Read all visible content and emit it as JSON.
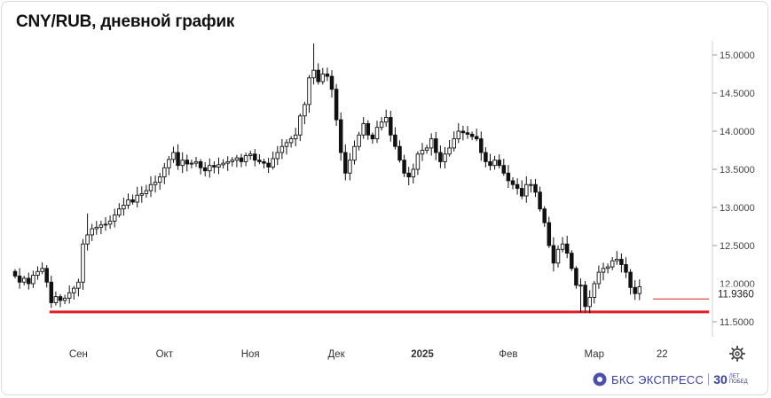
{
  "title": "CNY/RUB, дневной график",
  "brand": {
    "name": "БКС ЭКСПРЕСС",
    "badge_number": "30",
    "badge_text": [
      "ЛЕТ",
      "ПОБЕД"
    ]
  },
  "settings_icon": "gear-icon",
  "colors": {
    "up": "#ffffff",
    "down": "#111111",
    "support": "#e01e26",
    "last_price": "#e01e26",
    "grid": "#e6e6e6",
    "axis": "#444444"
  },
  "chart_data": {
    "type": "candlestick",
    "title": "CNY/RUB, дневной график",
    "ylim": [
      11.5,
      15.1
    ],
    "yticks": [
      "15.0000",
      "14.5000",
      "14.0000",
      "13.5000",
      "13.0000",
      "12.5000",
      "11.5000"
    ],
    "ytick_values": [
      15.0,
      14.5,
      14.0,
      13.5,
      13.0,
      12.5,
      11.5
    ],
    "last_price_label": "11.9360",
    "last_price": 11.936,
    "xticks": [
      "Сен",
      "Окт",
      "Ноя",
      "Дек",
      "2025",
      "Фев",
      "Мар",
      "22"
    ],
    "xtick_index": [
      14,
      33,
      52,
      71,
      90,
      109,
      128,
      143
    ],
    "support_level": 11.63,
    "support_range_index": [
      8,
      144
    ],
    "closes": [
      12.1,
      12.02,
      12.07,
      12.0,
      12.11,
      12.16,
      12.2,
      12.02,
      11.75,
      11.83,
      11.78,
      11.81,
      11.88,
      11.94,
      12.02,
      12.52,
      12.64,
      12.72,
      12.74,
      12.77,
      12.78,
      12.82,
      12.9,
      12.98,
      13.03,
      13.1,
      13.07,
      13.16,
      13.18,
      13.22,
      13.3,
      13.33,
      13.4,
      13.52,
      13.63,
      13.72,
      13.55,
      13.62,
      13.57,
      13.58,
      13.6,
      13.52,
      13.48,
      13.55,
      13.53,
      13.56,
      13.58,
      13.6,
      13.62,
      13.65,
      13.6,
      13.68,
      13.7,
      13.62,
      13.6,
      13.58,
      13.53,
      13.64,
      13.72,
      13.8,
      13.85,
      13.9,
      13.95,
      14.2,
      14.35,
      14.7,
      14.8,
      14.65,
      14.75,
      14.72,
      14.55,
      14.15,
      13.72,
      13.45,
      13.62,
      13.8,
      13.95,
      14.1,
      13.95,
      13.9,
      14.05,
      14.12,
      14.18,
      13.95,
      13.8,
      13.62,
      13.45,
      13.4,
      13.5,
      13.7,
      13.75,
      13.78,
      13.9,
      13.72,
      13.6,
      13.7,
      13.78,
      13.9,
      14.0,
      13.98,
      13.96,
      13.93,
      13.9,
      13.72,
      13.6,
      13.55,
      13.62,
      13.55,
      13.45,
      13.35,
      13.3,
      13.25,
      13.15,
      13.3,
      13.3,
      13.2,
      12.98,
      12.8,
      12.5,
      12.27,
      12.45,
      12.52,
      12.4,
      12.2,
      11.98,
      11.98,
      11.7,
      11.82,
      12.0,
      12.15,
      12.2,
      12.22,
      12.3,
      12.32,
      12.25,
      12.15,
      11.95,
      11.87,
      11.96
    ]
  }
}
